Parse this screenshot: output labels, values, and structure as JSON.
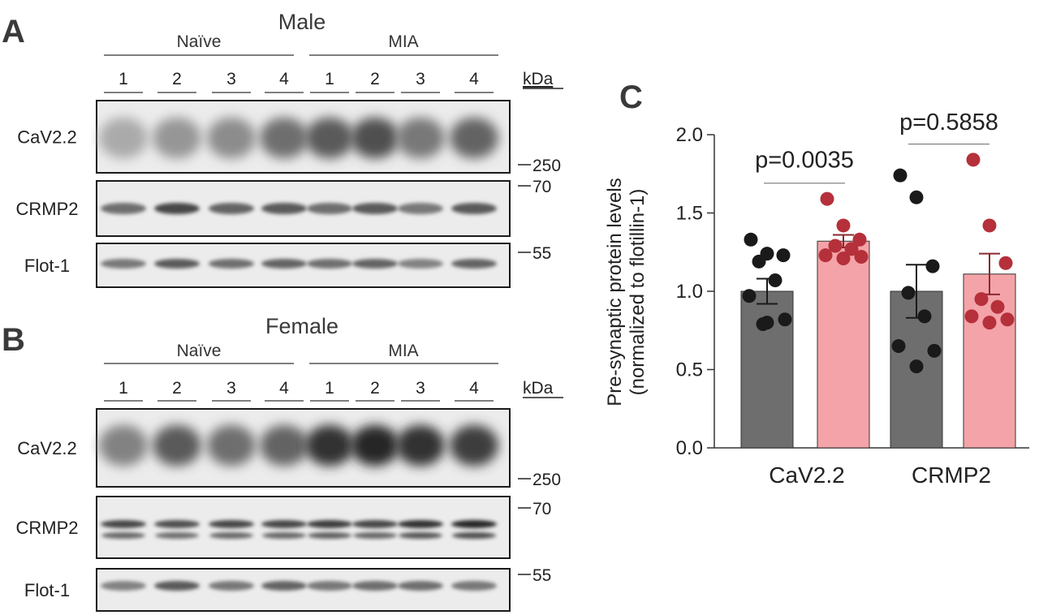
{
  "panels": {
    "A": {
      "letter": "A",
      "sex": "Male",
      "groups": [
        "Naïve",
        "MIA"
      ],
      "lanes": [
        "1",
        "2",
        "3",
        "4",
        "1",
        "2",
        "3",
        "4"
      ],
      "kda": "kDa",
      "blots": [
        {
          "label": "CaV2.2",
          "marker": "250",
          "intensity": [
            0.3,
            0.4,
            0.45,
            0.6,
            0.7,
            0.75,
            0.55,
            0.65
          ]
        },
        {
          "label": "CRMP2",
          "marker": "70",
          "intensity": [
            0.6,
            0.8,
            0.65,
            0.7,
            0.6,
            0.7,
            0.55,
            0.7
          ]
        },
        {
          "label": "Flot-1",
          "marker": "55",
          "intensity": [
            0.55,
            0.7,
            0.6,
            0.65,
            0.6,
            0.65,
            0.5,
            0.65
          ]
        }
      ]
    },
    "B": {
      "letter": "B",
      "sex": "Female",
      "groups": [
        "Naïve",
        "MIA"
      ],
      "lanes": [
        "1",
        "2",
        "3",
        "4",
        "1",
        "2",
        "3",
        "4"
      ],
      "kda": "kDa",
      "blots": [
        {
          "label": "CaV2.2",
          "marker": "250",
          "intensity": [
            0.5,
            0.7,
            0.6,
            0.65,
            0.9,
            0.95,
            0.9,
            0.85
          ]
        },
        {
          "label": "CRMP2",
          "marker": "70",
          "intensity": [
            0.8,
            0.75,
            0.8,
            0.8,
            0.85,
            0.8,
            0.9,
            0.95
          ]
        },
        {
          "label": "Flot-1",
          "marker": "55",
          "intensity": [
            0.5,
            0.7,
            0.55,
            0.65,
            0.55,
            0.6,
            0.6,
            0.55
          ]
        }
      ]
    },
    "C": {
      "letter": "C"
    }
  },
  "chart_data": {
    "type": "bar",
    "categories": [
      "CaV2.2",
      "CRMP2"
    ],
    "ylabel_line1": "Pre-synaptic protein levels",
    "ylabel_line2": "(normalized to flotillin-1)",
    "ylim": [
      0,
      2.0
    ],
    "yticks": [
      "0.0",
      "0.5",
      "1.0",
      "1.5",
      "2.0"
    ],
    "series": [
      {
        "values": [
          1.0,
          1.0
        ],
        "sem": [
          0.08,
          0.17
        ],
        "bar_color": "#6e6e6e",
        "dot_color": "#1a1a1a"
      },
      {
        "values": [
          1.32,
          1.11
        ],
        "sem": [
          0.04,
          0.13
        ],
        "bar_color": "#f4a3a8",
        "dot_color": "#b5303a"
      }
    ],
    "points": [
      [
        [
          1.33,
          1.24,
          1.23,
          1.19,
          1.07,
          0.97,
          0.82,
          0.8,
          0.79
        ],
        [
          1.59,
          1.42,
          1.33,
          1.29,
          1.27,
          1.23,
          1.22,
          1.21
        ]
      ],
      [
        [
          1.74,
          1.6,
          1.16,
          0.99,
          0.84,
          0.65,
          0.62,
          0.52
        ],
        [
          1.84,
          1.42,
          1.18,
          0.95,
          0.9,
          0.84,
          0.82,
          0.8
        ]
      ]
    ],
    "annotations": [
      "p=0.0035",
      "p=0.5858"
    ]
  }
}
